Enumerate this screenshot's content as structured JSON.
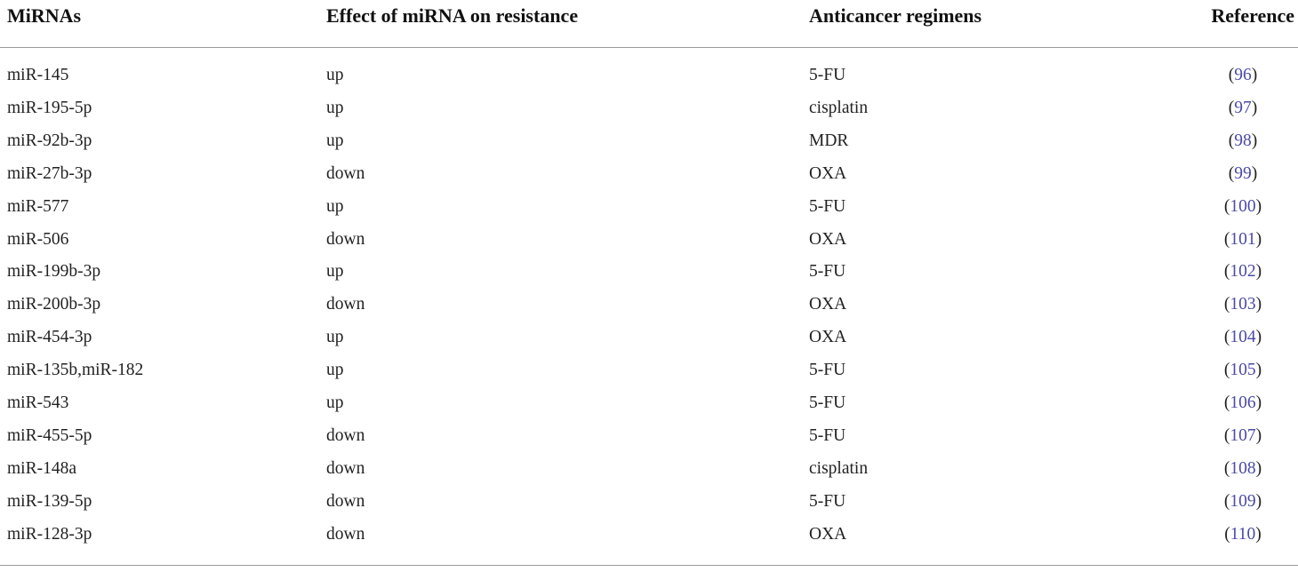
{
  "table": {
    "header": [
      "MiRNAs",
      "Effect of miRNA on resistance",
      "Anticancer regimens",
      "Reference"
    ],
    "rows": [
      [
        "miR-145",
        "up",
        "5-FU",
        "(96)"
      ],
      [
        "miR-195-5p",
        "up",
        "cisplatin",
        "(97)"
      ],
      [
        "miR-92b-3p",
        "up",
        "MDR",
        "(98)"
      ],
      [
        "miR-27b-3p",
        "down",
        "OXA",
        "(99)"
      ],
      [
        "miR-577",
        "up",
        "5-FU",
        "(100)"
      ],
      [
        "miR-506",
        "down",
        "OXA",
        "(101)"
      ],
      [
        "miR-199b-3p",
        "up",
        "5-FU",
        "(102)"
      ],
      [
        "miR-200b-3p",
        "down",
        "OXA",
        "(103)"
      ],
      [
        "miR-454-3p",
        "up",
        "OXA",
        "(104)"
      ],
      [
        "miR-135b,miR-182",
        "up",
        "5-FU",
        "(105)"
      ],
      [
        "miR-543",
        "up",
        "5-FU",
        "(106)"
      ],
      [
        "miR-455-5p",
        "down",
        "5-FU",
        "(107)"
      ],
      [
        "miR-148a",
        "down",
        "cisplatin",
        "(108)"
      ],
      [
        "miR-139-5p",
        "down",
        "5-FU",
        "(109)"
      ],
      [
        "miR-128-3p",
        "down",
        "OXA",
        "(110)"
      ]
    ]
  }
}
